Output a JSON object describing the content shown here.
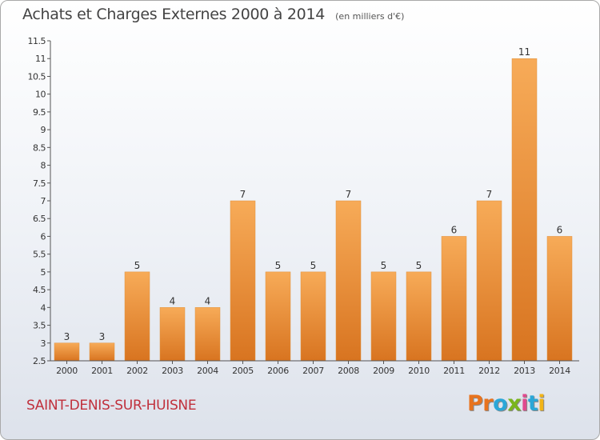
{
  "header": {
    "title": "Achats et Charges Externes 2000 à 2014",
    "subtitle": "(en milliers d'€)"
  },
  "footer": {
    "city": "SAINT-DENIS-SUR-HUISNE",
    "logo": "Proxiti",
    "logo_colors": [
      "#e8731e",
      "#e8731e",
      "#2aa7d8",
      "#7ab51d",
      "#e04a8e",
      "#2aa7d8",
      "#f2b416"
    ]
  },
  "colors": {
    "bar_top": "#f7ab58",
    "bar_bottom": "#d87420",
    "axis": "#555555",
    "grid": "#cfd4dc"
  },
  "chart_data": {
    "type": "bar",
    "categories": [
      "2000",
      "2001",
      "2002",
      "2003",
      "2004",
      "2005",
      "2006",
      "2007",
      "2008",
      "2009",
      "2010",
      "2011",
      "2012",
      "2013",
      "2014"
    ],
    "values": [
      3,
      3,
      5,
      4,
      4,
      7,
      5,
      5,
      7,
      5,
      5,
      6,
      7,
      11,
      6
    ],
    "data_labels": [
      "3",
      "3",
      "5",
      "4",
      "4",
      "7",
      "5",
      "5",
      "7",
      "5",
      "5",
      "6",
      "7",
      "11",
      "6"
    ],
    "ylim": [
      2.5,
      11.5
    ],
    "yticks": [
      "2.5",
      "3",
      "3.5",
      "4",
      "4.5",
      "5",
      "5.5",
      "6",
      "6.5",
      "7",
      "7.5",
      "8",
      "8.5",
      "9",
      "9.5",
      "10",
      "10.5",
      "11",
      "11.5"
    ],
    "grid": false
  }
}
